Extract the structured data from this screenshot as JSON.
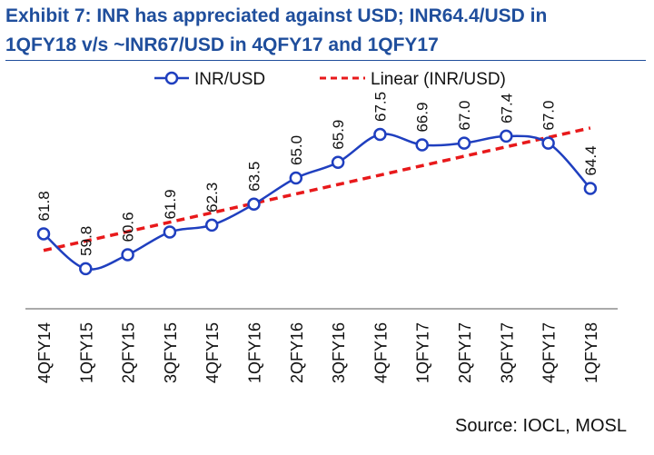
{
  "title_lines": [
    "Exhibit 7: INR has appreciated against USD; INR64.4/USD in",
    "1QFY18 v/s ~INR67/USD in 4QFY17 and 1QFY17"
  ],
  "source": "Source: IOCL, MOSL",
  "colors": {
    "title": "#1f4e9c",
    "series": "#1f3fbf",
    "trend": "#e8191b",
    "marker_fill": "#ffffff"
  },
  "chart_data": {
    "type": "line",
    "categories": [
      "4QFY14",
      "1QFY15",
      "2QFY15",
      "3QFY15",
      "4QFY15",
      "1QFY16",
      "2QFY16",
      "3QFY16",
      "4QFY16",
      "1QFY17",
      "2QFY17",
      "3QFY17",
      "4QFY17",
      "1QFY18"
    ],
    "series": [
      {
        "name": "INR/USD",
        "values": [
          61.8,
          59.8,
          60.6,
          61.9,
          62.3,
          63.5,
          65.0,
          65.9,
          67.5,
          66.9,
          67.0,
          67.4,
          67.0,
          64.4
        ],
        "labels": [
          "61.8",
          "59.8",
          "60.6",
          "61.9",
          "62.3",
          "63.5",
          "65.0",
          "65.9",
          "67.5",
          "66.9",
          "67.0",
          "67.4",
          "67.0",
          "64.4"
        ],
        "style": "solid line with open circle markers"
      },
      {
        "name": "Linear (INR/USD)",
        "trendline": "linear fit of INR/USD",
        "style": "dashed"
      }
    ],
    "legend_position": "top",
    "ylim": [
      57.5,
      70.0
    ],
    "grid": false,
    "xlabel": "",
    "ylabel": ""
  }
}
